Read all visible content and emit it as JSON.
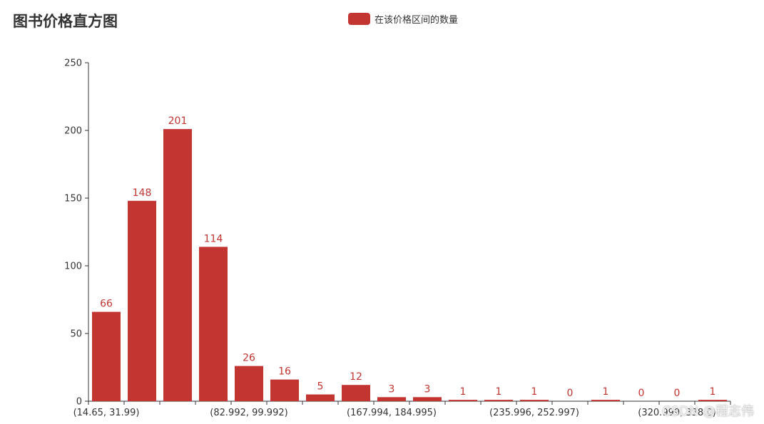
{
  "title": "图书价格直方图",
  "watermark": "CSDN @程志伟",
  "legend": {
    "label": "在该价格区间的数量"
  },
  "colors": {
    "bar": "#c23531",
    "axis": "#333333",
    "text": "#333333"
  },
  "chart_data": {
    "type": "bar",
    "title": "图书价格直方图",
    "series": [
      {
        "name": "在该价格区间的数量",
        "values": [
          66,
          148,
          201,
          114,
          26,
          16,
          5,
          12,
          3,
          3,
          1,
          1,
          1,
          0,
          1,
          0,
          0,
          1
        ]
      }
    ],
    "categories": [
      "(14.65, 31.99)",
      "",
      "",
      "",
      "(82.992, 99.992)",
      "",
      "",
      "",
      "(167.994, 184.995)",
      "",
      "",
      "",
      "(235.996, 252.997)",
      "",
      "",
      "",
      "(320.999, 338.0)",
      ""
    ],
    "ylim": [
      0,
      250
    ],
    "yticks": [
      0,
      50,
      100,
      150,
      200,
      250
    ],
    "legend_position": "top-center",
    "grid": false
  }
}
